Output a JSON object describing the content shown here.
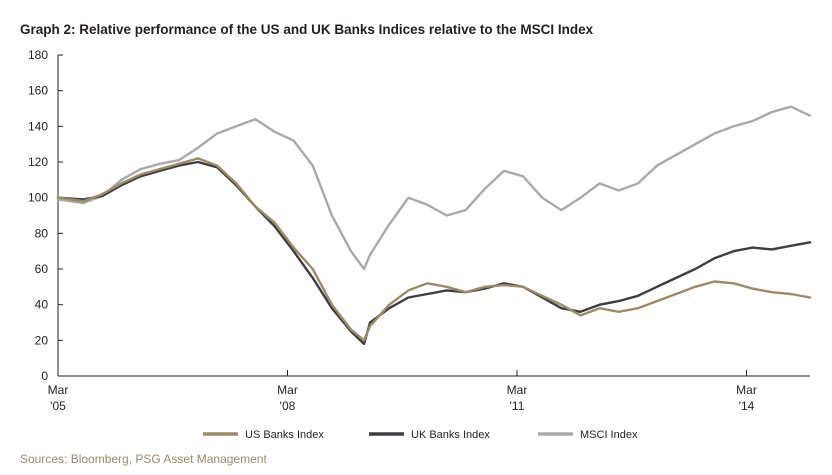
{
  "chart_data": {
    "type": "line",
    "title": "Graph 2: Relative performance of the US and UK Banks Indices relative to the MSCI Index",
    "source": "Sources: Bloomberg, PSG Asset Management",
    "xlabel": "",
    "ylabel": "",
    "ylim": [
      0,
      180
    ],
    "y_ticks": [
      "0",
      "20",
      "40",
      "60",
      "80",
      "100",
      "120",
      "140",
      "160",
      "180"
    ],
    "x_ticks": [
      {
        "line1": "Mar",
        "line2": "'05"
      },
      {
        "line1": "Mar",
        "line2": "'08"
      },
      {
        "line1": "Mar",
        "line2": "'11"
      },
      {
        "line1": "Mar",
        "line2": "'14"
      }
    ],
    "x": [
      2005.17,
      2005.5,
      2005.75,
      2006.0,
      2006.25,
      2006.5,
      2006.75,
      2007.0,
      2007.25,
      2007.5,
      2007.75,
      2008.0,
      2008.25,
      2008.5,
      2008.75,
      2009.0,
      2009.17,
      2009.25,
      2009.5,
      2009.75,
      2010.0,
      2010.25,
      2010.5,
      2010.75,
      2011.0,
      2011.25,
      2011.5,
      2011.75,
      2012.0,
      2012.25,
      2012.5,
      2012.75,
      2013.0,
      2013.25,
      2013.5,
      2013.75,
      2014.0,
      2014.25,
      2014.5,
      2014.75,
      2015.0
    ],
    "grid": false,
    "legend_position": "bottom",
    "series": [
      {
        "name": "US Banks Index",
        "color": "#9c8b67",
        "values": [
          100,
          98,
          102,
          108,
          113,
          116,
          119,
          122,
          118,
          108,
          95,
          86,
          72,
          60,
          40,
          26,
          20,
          28,
          40,
          48,
          52,
          50,
          47,
          50,
          51,
          50,
          45,
          40,
          34,
          38,
          36,
          38,
          42,
          46,
          50,
          53,
          52,
          49,
          47,
          46,
          44
        ]
      },
      {
        "name": "UK Banks Index",
        "color": "#3c3e42",
        "values": [
          100,
          99,
          101,
          107,
          112,
          115,
          118,
          120,
          117,
          107,
          95,
          84,
          70,
          55,
          38,
          25,
          18,
          30,
          38,
          44,
          46,
          48,
          47,
          49,
          52,
          50,
          44,
          38,
          36,
          40,
          42,
          45,
          50,
          55,
          60,
          66,
          70,
          72,
          71,
          73,
          75
        ]
      },
      {
        "name": "MSCI Index",
        "color": "#a7a9ac",
        "values": [
          99,
          97,
          101,
          110,
          116,
          119,
          121,
          128,
          136,
          140,
          144,
          137,
          132,
          118,
          90,
          70,
          60,
          68,
          85,
          100,
          96,
          90,
          93,
          105,
          115,
          112,
          100,
          93,
          100,
          108,
          104,
          108,
          118,
          124,
          130,
          136,
          140,
          143,
          148,
          151,
          146
        ]
      }
    ]
  }
}
